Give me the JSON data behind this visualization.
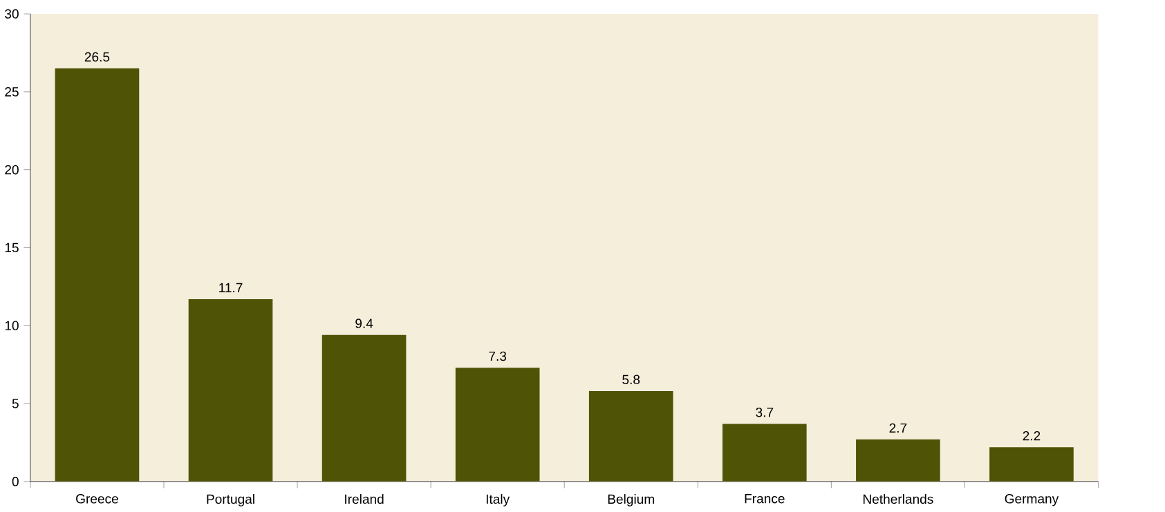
{
  "chart_data": {
    "type": "bar",
    "categories": [
      "Greece",
      "Portugal",
      "Ireland",
      "Italy",
      "Belgium",
      "France",
      "Netherlands",
      "Germany"
    ],
    "values": [
      26.5,
      11.7,
      9.4,
      7.3,
      5.8,
      3.7,
      2.7,
      2.2
    ],
    "color": "#4f5306",
    "ylim": [
      0,
      30
    ],
    "yticks": [
      0,
      5,
      10,
      15,
      20,
      25,
      30
    ],
    "data_labels": true
  }
}
